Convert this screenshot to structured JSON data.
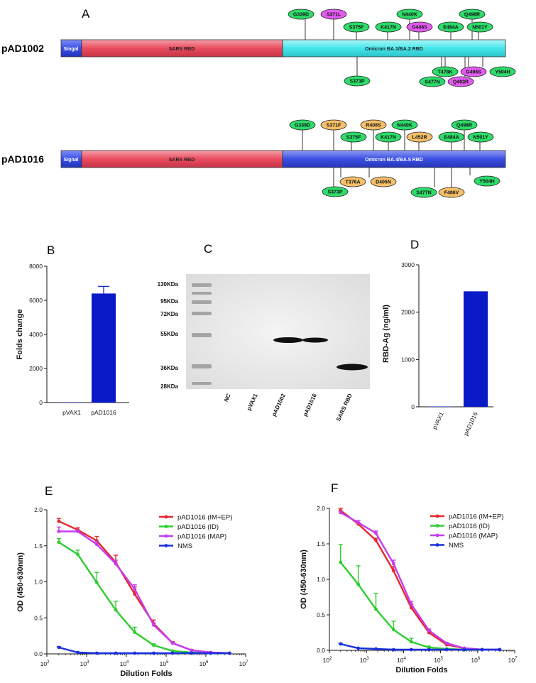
{
  "panel_A": {
    "letter": "A",
    "constructs": [
      {
        "name": "pAD1002",
        "signal_label": "Singal",
        "sars_label": "SARS RBD",
        "omicron_label": "Omicron BA.1/BA.2 RBD",
        "omicron_color": "#44e6ea",
        "mutations_top": [
          {
            "label": "G339D",
            "type": "common"
          },
          {
            "label": "S371L",
            "type": "specific"
          },
          {
            "label": "S375F",
            "type": "common"
          },
          {
            "label": "K417N",
            "type": "common"
          },
          {
            "label": "N440K",
            "type": "common"
          },
          {
            "label": "G446S",
            "type": "specific"
          },
          {
            "label": "E484A",
            "type": "common"
          },
          {
            "label": "Q498R",
            "type": "common"
          },
          {
            "label": "N501Y",
            "type": "common"
          }
        ],
        "mutations_bottom": [
          {
            "label": "S373P",
            "type": "common"
          },
          {
            "label": "T478K",
            "type": "common"
          },
          {
            "label": "S477N",
            "type": "common"
          },
          {
            "label": "Q493R",
            "type": "specific"
          },
          {
            "label": "G496S",
            "type": "specific"
          },
          {
            "label": "Y504H",
            "type": "common"
          }
        ]
      },
      {
        "name": "pAD1016",
        "signal_label": "Signal",
        "sars_label": "SARS RBD",
        "omicron_label": "Omicron BA.4/BA.5 RBD",
        "omicron_color": "#3b4fe0",
        "mutations_top": [
          {
            "label": "G339D",
            "type": "common"
          },
          {
            "label": "S371F",
            "type": "specific"
          },
          {
            "label": "S375F",
            "type": "common"
          },
          {
            "label": "R408S",
            "type": "specific"
          },
          {
            "label": "K417N",
            "type": "common"
          },
          {
            "label": "N440K",
            "type": "common"
          },
          {
            "label": "L452R",
            "type": "specific"
          },
          {
            "label": "E484A",
            "type": "common"
          },
          {
            "label": "Q498R",
            "type": "common"
          },
          {
            "label": "N501Y",
            "type": "common"
          }
        ],
        "mutations_bottom": [
          {
            "label": "S373P",
            "type": "common"
          },
          {
            "label": "T376A",
            "type": "specific"
          },
          {
            "label": "D405N",
            "type": "specific"
          },
          {
            "label": "S477N",
            "type": "common"
          },
          {
            "label": "F486V",
            "type": "specific"
          },
          {
            "label": "Y504H",
            "type": "common"
          }
        ]
      }
    ],
    "colors": {
      "signal": "#3a4fe8",
      "sars": "#ea4b5e",
      "common": "#2ddc6a",
      "specific_1002": "#e35cf0",
      "specific_1016": "#f5c069"
    }
  },
  "panel_B": {
    "letter": "B",
    "chart_data": {
      "type": "bar",
      "categories": [
        "pVAX1",
        "pAD1016"
      ],
      "values": [
        0,
        6400
      ],
      "error": [
        0,
        420
      ],
      "ylabel": "Folds change",
      "ylim": [
        0,
        8000
      ],
      "yticks": [
        "0",
        "2000",
        "4000",
        "6000",
        "8000"
      ],
      "bar_color": "#0a1ac8"
    }
  },
  "panel_C": {
    "letter": "C",
    "markers": [
      "130KDa",
      "95KDa",
      "72KDa",
      "55KDa",
      "36KDa",
      "28KDa"
    ],
    "lanes": [
      "NC",
      "pVAX1",
      "pAD1002",
      "pAD1016",
      "SARS RBD"
    ]
  },
  "panel_D": {
    "letter": "D",
    "chart_data": {
      "type": "bar",
      "categories": [
        "pVAX1",
        "pAD1016"
      ],
      "values": [
        0,
        2440
      ],
      "ylabel": "RBD-Ag (ng/ml)",
      "ylim": [
        0,
        3000
      ],
      "yticks": [
        "0",
        "1000",
        "2000",
        "3000"
      ],
      "bar_color": "#0a1ac8"
    }
  },
  "panel_E": {
    "letter": "E",
    "chart_data": {
      "type": "line",
      "x_scale": "log",
      "xlim": [
        100,
        10000000
      ],
      "ylim": [
        0,
        2.0
      ],
      "xlabel": "Dilution Folds",
      "ylabel": "OD (450-630nm)",
      "yticks": [
        "0.0",
        "0.5",
        "1.0",
        "1.5",
        "2.0"
      ],
      "x": [
        200,
        600,
        1800,
        5400,
        16200,
        48600,
        145800,
        437400,
        1312200,
        3936600
      ],
      "series": [
        {
          "name": "pAD1016 (IM+EP)",
          "color": "#e8262e",
          "values": [
            1.84,
            1.72,
            1.57,
            1.27,
            0.83,
            0.42,
            0.15,
            0.05,
            0.02,
            0.01
          ],
          "error": [
            0.04,
            0.03,
            0.06,
            0.1,
            0.1,
            0.05,
            0.02,
            0.01,
            0.0,
            0.0
          ]
        },
        {
          "name": "pAD1016 (ID)",
          "color": "#2fcd2f",
          "values": [
            1.55,
            1.38,
            0.99,
            0.61,
            0.3,
            0.12,
            0.04,
            0.02,
            0.01,
            0.01
          ],
          "error": [
            0.05,
            0.06,
            0.14,
            0.12,
            0.07,
            0.02,
            0.01,
            0.0,
            0.0,
            0.0
          ]
        },
        {
          "name": "pAD1016 (MAP)",
          "color": "#c43cf0",
          "values": [
            1.7,
            1.7,
            1.52,
            1.25,
            0.9,
            0.4,
            0.15,
            0.05,
            0.02,
            0.01
          ],
          "error": [
            0.06,
            0.02,
            0.04,
            0.05,
            0.06,
            0.03,
            0.01,
            0.0,
            0.0,
            0.0
          ]
        },
        {
          "name": "NMS",
          "color": "#1a2fe0",
          "values": [
            0.09,
            0.02,
            0.01,
            0.01,
            0.01,
            0.01,
            0.01,
            0.01,
            0.01,
            0.01
          ],
          "error": [
            0.01,
            0.0,
            0.0,
            0.0,
            0.0,
            0.0,
            0.0,
            0.0,
            0.0,
            0.0
          ]
        }
      ]
    }
  },
  "panel_F": {
    "letter": "F",
    "chart_data": {
      "type": "line",
      "x_scale": "log",
      "xlim": [
        100,
        10000000
      ],
      "ylim": [
        0,
        2.0
      ],
      "xlabel": "Dilution Folds",
      "ylabel": "OD (450-630nm)",
      "yticks": [
        "0.0",
        "0.5",
        "1.0",
        "1.5",
        "2.0"
      ],
      "x": [
        200,
        600,
        1800,
        5400,
        16200,
        48600,
        145800,
        437400,
        1312200,
        3936600
      ],
      "series": [
        {
          "name": "pAD1016 (IM+EP)",
          "color": "#e8262e",
          "values": [
            1.97,
            1.78,
            1.55,
            1.12,
            0.6,
            0.25,
            0.08,
            0.03,
            0.01,
            0.01
          ],
          "error": [
            0.03,
            0.02,
            0.03,
            0.06,
            0.05,
            0.03,
            0.01,
            0.0,
            0.0,
            0.0
          ]
        },
        {
          "name": "pAD1016 (ID)",
          "color": "#2fcd2f",
          "values": [
            1.24,
            0.93,
            0.58,
            0.29,
            0.12,
            0.04,
            0.02,
            0.01,
            0.01,
            0.01
          ],
          "error": [
            0.25,
            0.26,
            0.22,
            0.12,
            0.05,
            0.02,
            0.0,
            0.0,
            0.0,
            0.0
          ]
        },
        {
          "name": "pAD1016 (MAP)",
          "color": "#c43cf0",
          "values": [
            1.94,
            1.8,
            1.65,
            1.22,
            0.65,
            0.28,
            0.1,
            0.03,
            0.01,
            0.01
          ],
          "error": [
            0.02,
            0.03,
            0.03,
            0.05,
            0.04,
            0.02,
            0.01,
            0.0,
            0.0,
            0.0
          ]
        },
        {
          "name": "NMS",
          "color": "#1a2fe0",
          "values": [
            0.09,
            0.03,
            0.02,
            0.01,
            0.01,
            0.01,
            0.01,
            0.01,
            0.01,
            0.01
          ],
          "error": [
            0.01,
            0.0,
            0.0,
            0.0,
            0.0,
            0.0,
            0.0,
            0.0,
            0.0,
            0.0
          ]
        }
      ]
    }
  }
}
